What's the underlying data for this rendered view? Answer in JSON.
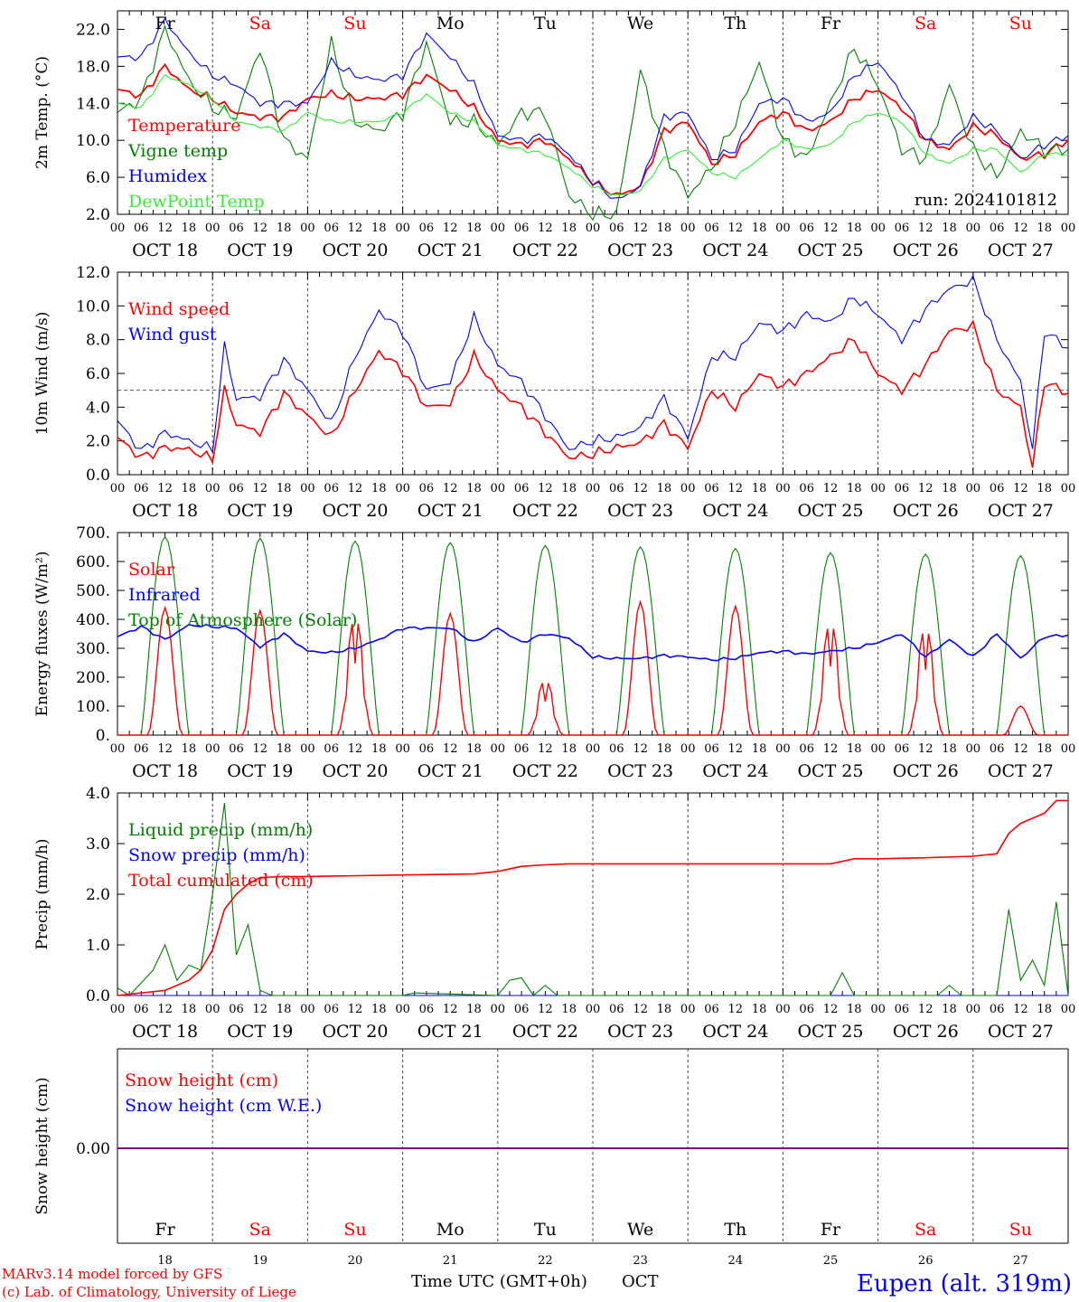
{
  "page": {
    "footer_left_1": "MARv3.14 model forced by GFS",
    "footer_left_2": "(c) Lab. of Climatology, University of Liege",
    "footer_center": "Time UTC (GMT+0h)",
    "footer_center_unit": "OCT",
    "location": "Eupen (alt. 319m)",
    "run": "run: 2024101812"
  },
  "days": [
    {
      "abbr": "Fr",
      "weekend": false,
      "label": "OCT 18",
      "num": "18"
    },
    {
      "abbr": "Sa",
      "weekend": true,
      "label": "OCT 19",
      "num": "19"
    },
    {
      "abbr": "Su",
      "weekend": true,
      "label": "OCT 20",
      "num": "20"
    },
    {
      "abbr": "Mo",
      "weekend": false,
      "label": "OCT 21",
      "num": "21"
    },
    {
      "abbr": "Tu",
      "weekend": false,
      "label": "OCT 22",
      "num": "22"
    },
    {
      "abbr": "We",
      "weekend": false,
      "label": "OCT 23",
      "num": "23"
    },
    {
      "abbr": "Th",
      "weekend": false,
      "label": "OCT 24",
      "num": "24"
    },
    {
      "abbr": "Fr",
      "weekend": false,
      "label": "OCT 25",
      "num": "25"
    },
    {
      "abbr": "Sa",
      "weekend": true,
      "label": "OCT 26",
      "num": "26"
    },
    {
      "abbr": "Su",
      "weekend": true,
      "label": "OCT 27",
      "num": "27"
    }
  ],
  "hour_labels": [
    "00",
    "06",
    "12",
    "18"
  ],
  "last_hour_label": "00",
  "colors": {
    "red": "#ff0000",
    "green": "#008000",
    "blue": "#0000ff",
    "lightgreen": "#33ee33",
    "purple": "#7f007f",
    "weekend": "#ff0000"
  },
  "chart_data": [
    {
      "id": "temp",
      "type": "line",
      "ylabel": "2m Temp. (°C)",
      "ylim": [
        2,
        24
      ],
      "yticks": [
        "2.0",
        "6.0",
        "10.0",
        "14.0",
        "18.0",
        "22.0"
      ],
      "x_unit": "hours since OCT 18 00 UTC",
      "xlim": [
        0,
        240
      ],
      "series": [
        {
          "name": "Temperature",
          "color": "#ff0000",
          "x": [
            0,
            6,
            12,
            18,
            24,
            30,
            36,
            42,
            48,
            54,
            60,
            66,
            72,
            78,
            84,
            90,
            96,
            102,
            108,
            114,
            120,
            126,
            132,
            138,
            144,
            150,
            156,
            162,
            168,
            174,
            180,
            186,
            192,
            198,
            204,
            210,
            216,
            222,
            228,
            234,
            240
          ],
          "values": [
            15.5,
            14.8,
            18,
            15.5,
            14.5,
            13,
            12.5,
            12.5,
            14.5,
            15,
            14.5,
            14.5,
            15,
            17,
            15.5,
            13.5,
            10,
            9.5,
            10,
            8,
            5.5,
            4,
            5,
            11,
            12,
            7.5,
            8.5,
            12,
            13,
            11,
            12,
            14.5,
            15.5,
            13.5,
            10,
            9,
            11.5,
            10.5,
            8,
            8.5,
            10
          ]
        },
        {
          "name": "Vigne temp",
          "color": "#008000",
          "x": [
            0,
            6,
            12,
            18,
            24,
            30,
            36,
            42,
            48,
            54,
            60,
            66,
            72,
            78,
            84,
            90,
            96,
            102,
            108,
            114,
            120,
            126,
            132,
            138,
            144,
            150,
            156,
            162,
            168,
            174,
            180,
            186,
            192,
            198,
            204,
            210,
            216,
            222,
            228,
            234,
            240
          ],
          "values": [
            13,
            14.5,
            22,
            16.5,
            13.5,
            12.5,
            20,
            10,
            8,
            20.5,
            12,
            11,
            13,
            20.5,
            12,
            12,
            9.5,
            13,
            13,
            4,
            2,
            2,
            17.5,
            9,
            4,
            7,
            12,
            18.5,
            10,
            8,
            14,
            20,
            16,
            9,
            8,
            16,
            9,
            6,
            11,
            9,
            9
          ]
        },
        {
          "name": "Humidex",
          "color": "#0000ff",
          "x": [
            0,
            6,
            12,
            18,
            24,
            30,
            36,
            42,
            48,
            54,
            60,
            66,
            72,
            78,
            84,
            90,
            96,
            102,
            108,
            114,
            120,
            126,
            132,
            138,
            144,
            150,
            156,
            162,
            168,
            174,
            180,
            186,
            192,
            198,
            204,
            210,
            216,
            222,
            228,
            234,
            240
          ],
          "values": [
            19,
            19,
            23,
            19.5,
            17,
            16,
            14,
            14,
            14,
            18.5,
            17,
            16.5,
            17,
            21.5,
            19,
            16,
            10.5,
            10,
            10.5,
            8.5,
            5.5,
            3.5,
            5,
            12.5,
            13,
            8,
            9,
            14,
            14.5,
            12,
            13,
            17,
            18.5,
            15,
            10,
            9.5,
            12.5,
            11,
            8,
            9.5,
            10.5
          ]
        },
        {
          "name": "DewPoint Temp",
          "color": "#33ee33",
          "x": [
            0,
            6,
            12,
            18,
            24,
            30,
            36,
            42,
            48,
            54,
            60,
            66,
            72,
            78,
            84,
            90,
            96,
            102,
            108,
            114,
            120,
            126,
            132,
            138,
            144,
            150,
            156,
            162,
            168,
            174,
            180,
            186,
            192,
            198,
            204,
            210,
            216,
            222,
            228,
            234,
            240
          ],
          "values": [
            14,
            13.5,
            17,
            16,
            14.5,
            12,
            11.5,
            11,
            13,
            12,
            12,
            12,
            13,
            15,
            13,
            12,
            9.5,
            9,
            8.5,
            7,
            5,
            4,
            4.5,
            8,
            9,
            6.5,
            6,
            8,
            10,
            9,
            9.5,
            12,
            13,
            12,
            8.5,
            7.5,
            9,
            9,
            6.5,
            8.5,
            8.5
          ]
        }
      ]
    },
    {
      "id": "wind",
      "type": "line",
      "ylabel": "10m Wind (m/s)",
      "ylim": [
        0,
        12
      ],
      "yticks": [
        "0.0",
        "2.0",
        "4.0",
        "6.0",
        "8.0",
        "10.0",
        "12.0"
      ],
      "reference_line": 5,
      "x_unit": "hours since OCT 18 00 UTC",
      "xlim": [
        0,
        240
      ],
      "series": [
        {
          "name": "Wind speed",
          "color": "#ff0000",
          "x": [
            0,
            6,
            12,
            18,
            24,
            27,
            30,
            36,
            42,
            48,
            54,
            60,
            66,
            72,
            78,
            84,
            90,
            96,
            102,
            108,
            114,
            120,
            126,
            132,
            138,
            144,
            150,
            156,
            162,
            168,
            174,
            180,
            186,
            192,
            198,
            204,
            210,
            216,
            222,
            228,
            231,
            234,
            240
          ],
          "values": [
            2.2,
            1,
            1.6,
            1.5,
            0.9,
            5,
            3,
            2.5,
            4.8,
            3.5,
            2.2,
            5,
            7.3,
            6.2,
            4,
            4.2,
            7,
            5,
            4,
            2.5,
            1,
            1.2,
            1.6,
            1.9,
            3,
            1.6,
            5,
            4,
            6,
            5.2,
            6,
            7,
            8,
            6,
            5,
            6.5,
            8.5,
            8.8,
            5,
            4,
            0.4,
            5.5,
            4.8
          ]
        },
        {
          "name": "Wind gust",
          "color": "#0000ff",
          "x": [
            0,
            6,
            12,
            18,
            24,
            27,
            30,
            36,
            42,
            48,
            54,
            60,
            66,
            72,
            78,
            84,
            90,
            96,
            102,
            108,
            114,
            120,
            126,
            132,
            138,
            144,
            150,
            156,
            162,
            168,
            174,
            180,
            186,
            192,
            198,
            204,
            210,
            216,
            222,
            228,
            231,
            234,
            240
          ],
          "values": [
            3.2,
            1.4,
            2.5,
            2,
            1.5,
            7.6,
            4.5,
            4.6,
            6.8,
            5,
            3,
            7,
            9.7,
            8.5,
            5,
            5.5,
            9.3,
            6.5,
            5.5,
            3.5,
            1.5,
            2,
            2.2,
            2.8,
            4.5,
            2.2,
            7,
            7,
            9,
            8.5,
            9.5,
            9,
            10.5,
            9.5,
            8,
            9.8,
            11,
            11.5,
            8,
            5.5,
            1.5,
            8.5,
            7.5
          ]
        }
      ]
    },
    {
      "id": "energy",
      "type": "line",
      "ylabel": "Energy fluxes (W/m²)",
      "ylim": [
        0,
        700
      ],
      "yticks": [
        "0.",
        "100.",
        "200.",
        "300.",
        "400.",
        "500.",
        "600.",
        "700."
      ],
      "x_unit": "hours since OCT 18 00 UTC",
      "xlim": [
        0,
        240
      ],
      "series": [
        {
          "name": "Solar",
          "color": "#ff0000",
          "peaks": [
            440,
            430,
            450,
            420,
            210,
            460,
            445,
            430,
            410,
            100
          ]
        },
        {
          "name": "Infrared",
          "color": "#0000ff",
          "x": [
            0,
            6,
            12,
            18,
            24,
            30,
            36,
            42,
            48,
            54,
            60,
            66,
            72,
            78,
            84,
            90,
            96,
            102,
            108,
            114,
            120,
            126,
            132,
            138,
            144,
            150,
            156,
            162,
            168,
            174,
            180,
            186,
            192,
            198,
            204,
            210,
            216,
            222,
            228,
            234,
            240
          ],
          "values": [
            340,
            375,
            330,
            380,
            375,
            370,
            305,
            350,
            290,
            285,
            300,
            330,
            370,
            370,
            370,
            320,
            370,
            320,
            350,
            335,
            270,
            265,
            265,
            275,
            270,
            260,
            265,
            285,
            290,
            280,
            290,
            300,
            320,
            350,
            270,
            330,
            270,
            350,
            265,
            340,
            345
          ]
        },
        {
          "name": "Top of Atmosphere (Solar)",
          "color": "#008000",
          "peaks": [
            685,
            680,
            670,
            665,
            655,
            650,
            645,
            630,
            625,
            620
          ]
        }
      ]
    },
    {
      "id": "precip",
      "type": "line",
      "ylabel": "Precip (mm/h)",
      "ylim": [
        0,
        4
      ],
      "yticks": [
        "0.0",
        "1.0",
        "2.0",
        "3.0",
        "4.0"
      ],
      "x_unit": "hours since OCT 18 00 UTC",
      "xlim": [
        0,
        240
      ],
      "series": [
        {
          "name": "Liquid precip (mm/h)",
          "color": "#008000",
          "x": [
            0,
            3,
            6,
            9,
            12,
            15,
            18,
            21,
            24,
            27,
            30,
            33,
            36,
            39,
            42,
            48,
            72,
            75,
            96,
            99,
            102,
            105,
            108,
            111,
            114,
            120,
            180,
            183,
            186,
            189,
            192,
            207,
            210,
            213,
            216,
            222,
            225,
            228,
            231,
            234,
            237,
            240
          ],
          "values": [
            0.15,
            0,
            0.25,
            0.5,
            1,
            0.3,
            0.6,
            0.5,
            2,
            3.8,
            0.8,
            1.4,
            0.1,
            0,
            0,
            0,
            0,
            0.05,
            0,
            0.3,
            0.35,
            0,
            0.2,
            0,
            0,
            0,
            0,
            0.45,
            0,
            0,
            0,
            0,
            0.2,
            0,
            0,
            0,
            1.7,
            0.3,
            0.7,
            0.2,
            1.85,
            0
          ]
        },
        {
          "name": "Snow precip (mm/h)",
          "color": "#0000ff",
          "x": [
            0,
            240
          ],
          "values": [
            0,
            0
          ]
        },
        {
          "name": "Total cumulated (cm)",
          "color": "#ff0000",
          "x": [
            0,
            6,
            12,
            18,
            21,
            24,
            27,
            30,
            33,
            36,
            42,
            48,
            72,
            90,
            96,
            102,
            108,
            114,
            120,
            180,
            186,
            192,
            204,
            216,
            222,
            225,
            228,
            231,
            234,
            237,
            240
          ],
          "values": [
            0,
            0.05,
            0.1,
            0.3,
            0.5,
            0.9,
            1.7,
            2,
            2.2,
            2.33,
            2.35,
            2.35,
            2.38,
            2.4,
            2.45,
            2.55,
            2.58,
            2.6,
            2.6,
            2.6,
            2.7,
            2.7,
            2.72,
            2.75,
            2.8,
            3.2,
            3.4,
            3.5,
            3.6,
            3.85,
            3.85
          ]
        }
      ]
    },
    {
      "id": "snow",
      "type": "line",
      "ylabel": "Snow height (cm)",
      "ytick": "0.00",
      "x_unit": "hours since OCT 18 00 UTC",
      "xlim": [
        0,
        240
      ],
      "series": [
        {
          "name": "Snow height (cm)",
          "color": "#ff0000",
          "x": [
            0,
            240
          ],
          "values": [
            0,
            0
          ]
        },
        {
          "name": "Snow height (cm W.E.)",
          "color": "#0000ff",
          "x": [
            0,
            240
          ],
          "values": [
            0,
            0
          ]
        }
      ]
    }
  ]
}
